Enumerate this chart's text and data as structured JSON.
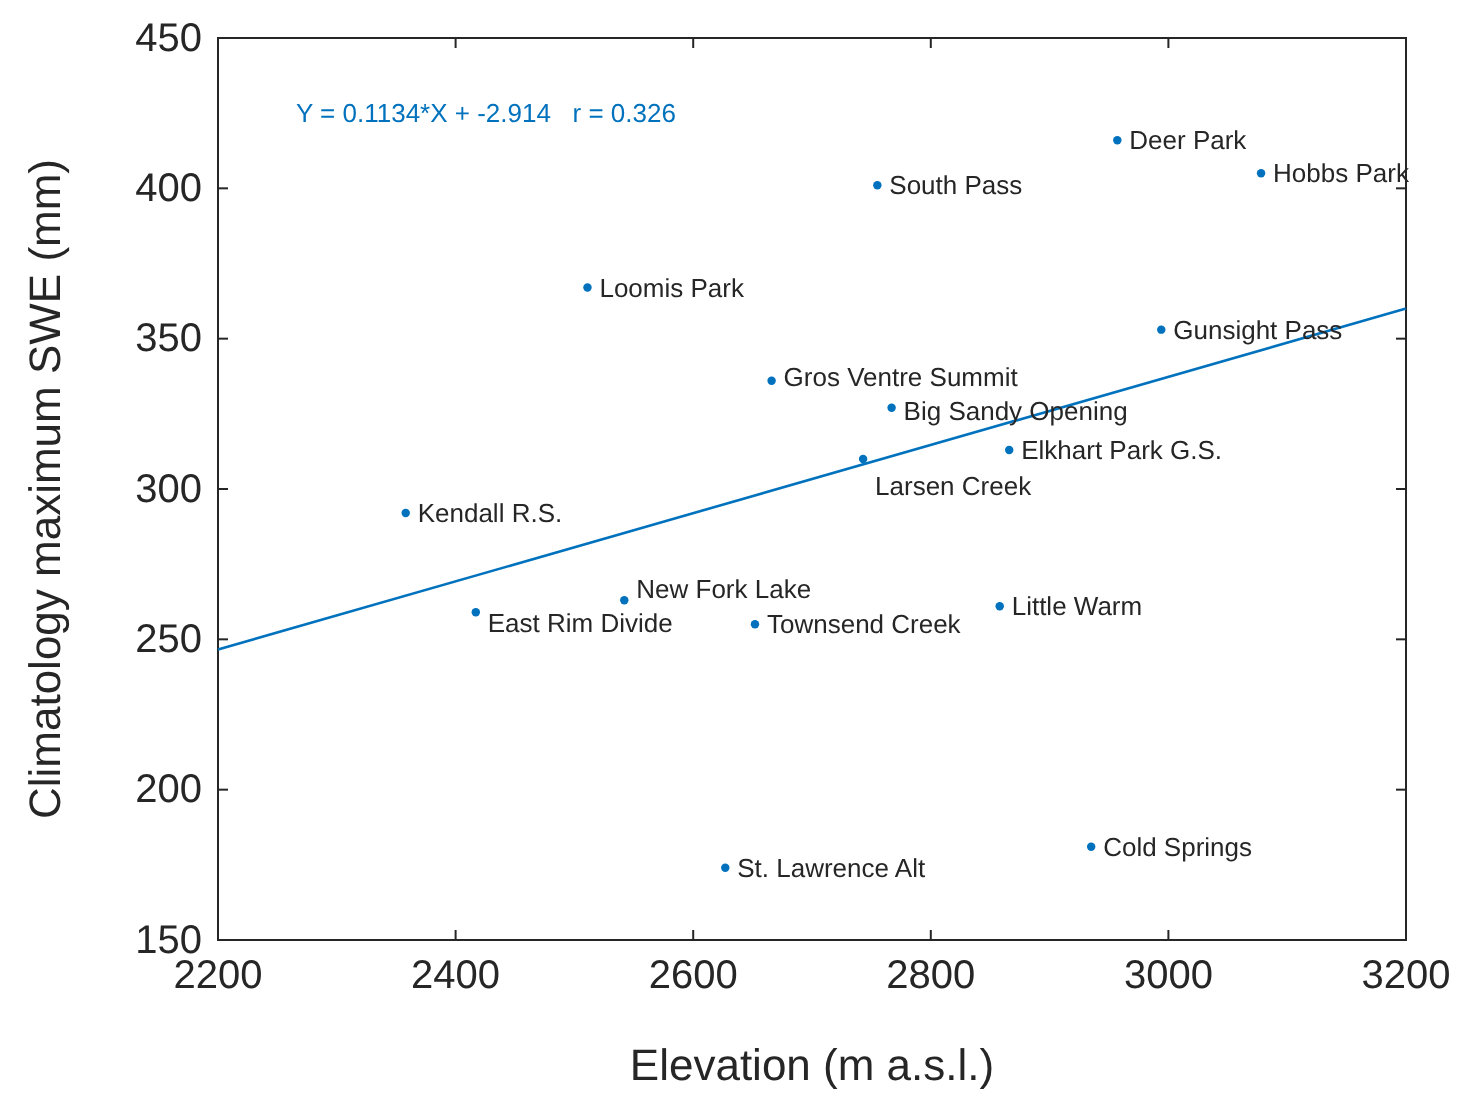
{
  "chart_data": {
    "type": "scatter",
    "xlabel": "Elevation (m a.s.l.)",
    "ylabel": "Climatology maximum SWE (mm)",
    "xlim": [
      2200,
      3200
    ],
    "xticks": [
      2200,
      2400,
      2600,
      2800,
      3000,
      3200
    ],
    "ylim": [
      150,
      450
    ],
    "yticks": [
      150,
      200,
      250,
      300,
      350,
      400,
      450
    ],
    "grid": false,
    "marker": "circle",
    "series": [
      {
        "color": "#0072bd",
        "x": [
          2957,
          3078,
          2755,
          2511,
          2994,
          2666,
          2767,
          2866,
          2743,
          2358,
          2542,
          2417,
          2652,
          2858,
          2935,
          2627
        ],
        "values": [
          416,
          405,
          401,
          367,
          353,
          336,
          327,
          313,
          310,
          292,
          263,
          259,
          255,
          261,
          181,
          174
        ]
      },
      {
        "type": "line",
        "color": "#0072bd",
        "x": [
          2200,
          3200
        ],
        "values": [
          246.6,
          360.0
        ],
        "marker": "none"
      }
    ],
    "annotations": [
      "Y = 0.1134*X + -2.914   r = 0.326",
      {
        "text": "Deer Park",
        "x": 2957,
        "y": 416
      },
      {
        "text": "Hobbs Park",
        "x": 3078,
        "y": 405
      },
      {
        "text": "South Pass",
        "x": 2755,
        "y": 401
      },
      {
        "text": "Loomis Park",
        "x": 2511,
        "y": 367
      },
      {
        "text": "Gunsight Pass",
        "x": 2994,
        "y": 353
      },
      {
        "text": "Gros Ventre Summit",
        "x": 2666,
        "y": 336
      },
      {
        "text": "Big Sandy Opening",
        "x": 2767,
        "y": 327
      },
      {
        "text": "Elkhart Park G.S.",
        "x": 2866,
        "y": 313
      },
      {
        "text": "Larsen Creek",
        "x": 2743,
        "y": 310
      },
      {
        "text": "Kendall R.S.",
        "x": 2358,
        "y": 292
      },
      {
        "text": "New Fork Lake",
        "x": 2542,
        "y": 263
      },
      {
        "text": "East Rim Divide",
        "x": 2417,
        "y": 259
      },
      {
        "text": "Townsend Creek",
        "x": 2652,
        "y": 255
      },
      {
        "text": "Little Warm",
        "x": 2858,
        "y": 261
      },
      {
        "text": "Cold Springs",
        "x": 2935,
        "y": 181
      },
      {
        "text": "St. Lawrence Alt",
        "x": 2627,
        "y": 174
      }
    ]
  }
}
